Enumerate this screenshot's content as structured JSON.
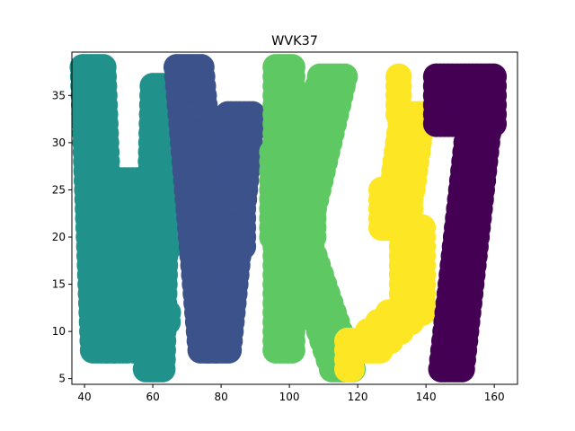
{
  "chart_data": {
    "type": "scatter",
    "title": "WVK37",
    "xlabel": "",
    "ylabel": "",
    "xlim": [
      36.3,
      166.8
    ],
    "ylim": [
      4.4,
      39.6
    ],
    "xticks": [
      40,
      60,
      80,
      100,
      120,
      140,
      160
    ],
    "yticks": [
      5,
      10,
      15,
      20,
      25,
      30,
      35
    ],
    "grid": false,
    "legend": "none",
    "marker_radius_units": 1.4,
    "colors": {
      "W": "#21918c",
      "V": "#3b528b",
      "K": "#5ec962",
      "3": "#fde725",
      "7": "#440154"
    },
    "series": [
      {
        "letter": "W",
        "color": "#21918c",
        "notes": "Letter W drawn with dense teal dots",
        "strokes": [
          {
            "from": [
              43,
              38
            ],
            "to": [
              46,
              8
            ],
            "width": 7,
            "step": 1
          },
          {
            "from": [
              54,
              26
            ],
            "to": [
              50,
              8
            ],
            "width": 7,
            "step": 1
          },
          {
            "from": [
              54,
              26
            ],
            "to": [
              58,
              8
            ],
            "width": 7,
            "step": 1
          },
          {
            "from": [
              63,
              36
            ],
            "to": [
              61,
              6
            ],
            "width": 6,
            "step": 1
          },
          {
            "from": [
              44,
              22
            ],
            "to": [
              62,
              17
            ],
            "width": 14,
            "step": 1,
            "fill": true
          }
        ]
      },
      {
        "letter": "V",
        "color": "#3b528b",
        "notes": "Letter V drawn with navy dots",
        "strokes": [
          {
            "from": [
              71,
              38
            ],
            "to": [
              78,
              8
            ],
            "width": 8,
            "step": 1
          },
          {
            "from": [
              86,
              33
            ],
            "to": [
              79,
              8
            ],
            "width": 8,
            "step": 1
          },
          {
            "from": [
              72,
              23
            ],
            "to": [
              87,
              19
            ],
            "width": 15,
            "step": 1,
            "fill": true
          }
        ]
      },
      {
        "letter": "K",
        "color": "#5ec962",
        "notes": "Letter K drawn with green dots",
        "strokes": [
          {
            "from": [
              99,
              38
            ],
            "to": [
              99,
              8
            ],
            "width": 6,
            "step": 1
          },
          {
            "from": [
              113,
              37
            ],
            "to": [
              102,
              20
            ],
            "width": 8,
            "step": 1
          },
          {
            "from": [
              103,
              20
            ],
            "to": [
              116,
              6
            ],
            "width": 7,
            "step": 1
          },
          {
            "from": [
              95,
              29
            ],
            "to": [
              108,
              20
            ],
            "width": 13,
            "step": 1,
            "fill": true
          }
        ]
      },
      {
        "letter": "3",
        "color": "#fde725",
        "notes": "Digit 3 drawn with yellow dots",
        "strokes": [
          {
            "from": [
              132,
              37
            ],
            "to": [
              132,
              33
            ],
            "width": 16,
            "step": 1,
            "fill": true
          },
          {
            "from": [
              136,
              33
            ],
            "to": [
              133,
              25
            ],
            "width": 6,
            "step": 1
          },
          {
            "from": [
              127,
              25
            ],
            "to": [
              136,
              21
            ],
            "width": 13,
            "step": 1,
            "fill": true
          },
          {
            "from": [
              136,
              21
            ],
            "to": [
              136,
              12
            ],
            "width": 6,
            "step": 1
          },
          {
            "from": [
              134,
              12
            ],
            "to": [
              122,
              8
            ],
            "width": 10,
            "step": 1
          },
          {
            "from": [
              118,
              9
            ],
            "to": [
              118,
              6
            ],
            "width": 2,
            "step": 1
          }
        ]
      },
      {
        "letter": "7",
        "color": "#440154",
        "notes": "Digit 7 drawn with purple dots",
        "strokes": [
          {
            "from": [
              143,
              37
            ],
            "to": [
              160,
              32
            ],
            "width": 18,
            "step": 1,
            "fill": true
          },
          {
            "from": [
              156,
              32
            ],
            "to": [
              148,
              6
            ],
            "width": 7,
            "step": 1
          }
        ]
      }
    ]
  }
}
